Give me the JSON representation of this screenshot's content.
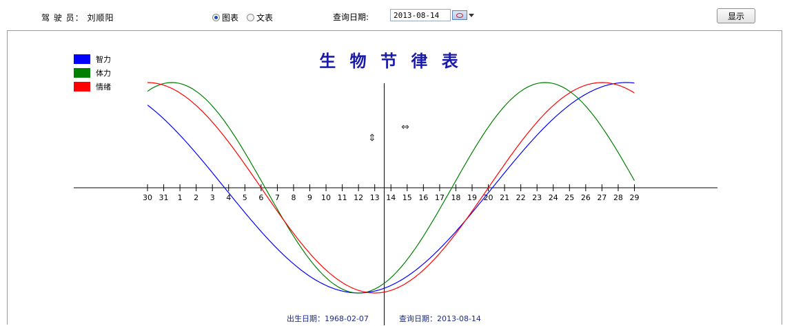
{
  "toolbar": {
    "driver_label": "驾 驶 员： 刘顺阳",
    "radio_chart": "图表",
    "radio_text": "文表",
    "query_label": "查询日期:",
    "query_date": "2013-08-14",
    "show_button": "显示"
  },
  "chart_data": {
    "type": "line",
    "title": "生 物 节 律 表",
    "x_ticks": [
      "30",
      "31",
      "1",
      "2",
      "3",
      "4",
      "5",
      "6",
      "7",
      "8",
      "9",
      "10",
      "11",
      "12",
      "13",
      "14",
      "15",
      "16",
      "17",
      "18",
      "19",
      "20",
      "21",
      "22",
      "23",
      "24",
      "25",
      "26",
      "27",
      "28",
      "29"
    ],
    "x_index_range": [
      0,
      30
    ],
    "ylim": [
      -1,
      1
    ],
    "current_day_index": 15,
    "legend_position": "top-left",
    "series": [
      {
        "name": "智力",
        "color": "#0000ff",
        "period": 33,
        "min_index": 13,
        "x_start": 0,
        "x_end": 30
      },
      {
        "name": "体力",
        "color": "#008000",
        "period": 23,
        "min_index": 13,
        "x_start": 0,
        "x_end": 30
      },
      {
        "name": "情绪",
        "color": "#ff0000",
        "period": 28,
        "min_index": 14,
        "x_start": 0,
        "x_end": 30
      }
    ],
    "footer_birth_label": "出生日期：1968-02-07",
    "footer_query_label": "查询日期：2013-08-14",
    "marker_vertical": "⇕",
    "marker_horizontal": "⇔"
  }
}
